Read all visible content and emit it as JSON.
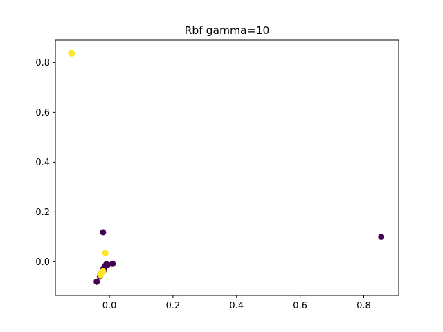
{
  "chart_data": {
    "type": "scatter",
    "title": "Rbf gamma=10",
    "xlabel": "",
    "ylabel": "",
    "xlim": [
      -0.17,
      0.91
    ],
    "ylim": [
      -0.135,
      0.89
    ],
    "x_ticks": [
      0.0,
      0.2,
      0.4,
      0.6,
      0.8
    ],
    "x_tick_labels": [
      "0.0",
      "0.2",
      "0.4",
      "0.6",
      "0.8"
    ],
    "y_ticks": [
      0.0,
      0.2,
      0.4,
      0.6,
      0.8
    ],
    "y_tick_labels": [
      "0.0",
      "0.2",
      "0.4",
      "0.6",
      "0.8"
    ],
    "grid": false,
    "colors": {
      "class_0": "#440154",
      "class_1": "#fde725"
    },
    "series": [
      {
        "class": 0,
        "color": "#440154",
        "x": [
          0.855,
          -0.02,
          -0.04,
          -0.025,
          -0.02,
          -0.015,
          -0.01,
          0.01,
          -0.005,
          -0.03,
          -0.018
        ],
        "y": [
          0.1,
          0.118,
          -0.08,
          -0.045,
          -0.03,
          -0.02,
          -0.01,
          -0.008,
          -0.012,
          -0.06,
          -0.035
        ]
      },
      {
        "class": 1,
        "color": "#fde725",
        "x": [
          -0.12,
          -0.118,
          -0.013,
          -0.022,
          -0.025,
          -0.03,
          -0.028,
          -0.02
        ],
        "y": [
          0.838,
          0.836,
          0.035,
          -0.04,
          -0.045,
          -0.05,
          -0.055,
          -0.038
        ]
      }
    ]
  }
}
